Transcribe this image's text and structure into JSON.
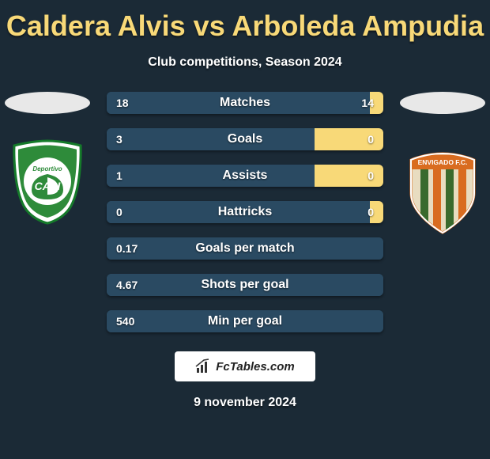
{
  "title": "Caldera Alvis vs Arboleda Ampudia",
  "subtitle": "Club competitions, Season 2024",
  "date": "9 november 2024",
  "watermark": "FcTables.com",
  "colors": {
    "left_bar": "#2a4a62",
    "right_bar": "#f8d978",
    "background": "#1b2a36",
    "title": "#f8d978"
  },
  "badges": {
    "left": {
      "name": "deportivo-cali-badge",
      "primary": "#2e8b3a",
      "text": "CALI",
      "small_text": "Deportivo"
    },
    "right": {
      "name": "envigado-fc-badge",
      "primary": "#d96c20",
      "secondary": "#3a6a2d",
      "text": "ENVIGADO F.C."
    }
  },
  "stats": [
    {
      "label": "Matches",
      "left_val": "18",
      "right_val": "14",
      "left_pct": 95,
      "right_pct": 5
    },
    {
      "label": "Goals",
      "left_val": "3",
      "right_val": "0",
      "left_pct": 75,
      "right_pct": 25
    },
    {
      "label": "Assists",
      "left_val": "1",
      "right_val": "0",
      "left_pct": 75,
      "right_pct": 25
    },
    {
      "label": "Hattricks",
      "left_val": "0",
      "right_val": "0",
      "left_pct": 95,
      "right_pct": 5
    },
    {
      "label": "Goals per match",
      "left_val": "0.17",
      "right_val": "",
      "left_pct": 100,
      "right_pct": 0
    },
    {
      "label": "Shots per goal",
      "left_val": "4.67",
      "right_val": "",
      "left_pct": 100,
      "right_pct": 0
    },
    {
      "label": "Min per goal",
      "left_val": "540",
      "right_val": "",
      "left_pct": 100,
      "right_pct": 0
    }
  ]
}
